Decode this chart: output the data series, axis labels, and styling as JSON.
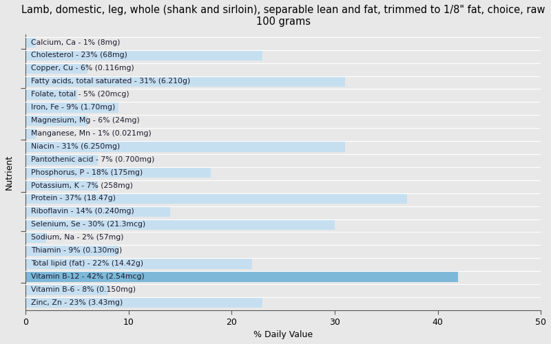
{
  "title": "Lamb, domestic, leg, whole (shank and sirloin), separable lean and fat, trimmed to 1/8\" fat, choice, raw\n100 grams",
  "xlabel": "% Daily Value",
  "ylabel": "Nutrient",
  "nutrients": [
    "Calcium, Ca - 1% (8mg)",
    "Cholesterol - 23% (68mg)",
    "Copper, Cu - 6% (0.116mg)",
    "Fatty acids, total saturated - 31% (6.210g)",
    "Folate, total - 5% (20mcg)",
    "Iron, Fe - 9% (1.70mg)",
    "Magnesium, Mg - 6% (24mg)",
    "Manganese, Mn - 1% (0.021mg)",
    "Niacin - 31% (6.250mg)",
    "Pantothenic acid - 7% (0.700mg)",
    "Phosphorus, P - 18% (175mg)",
    "Potassium, K - 7% (258mg)",
    "Protein - 37% (18.47g)",
    "Riboflavin - 14% (0.240mg)",
    "Selenium, Se - 30% (21.3mcg)",
    "Sodium, Na - 2% (57mg)",
    "Thiamin - 9% (0.130mg)",
    "Total lipid (fat) - 22% (14.42g)",
    "Vitamin B-12 - 42% (2.54mcg)",
    "Vitamin B-6 - 8% (0.150mg)",
    "Zinc, Zn - 23% (3.43mg)"
  ],
  "values": [
    1,
    23,
    6,
    31,
    5,
    9,
    6,
    1,
    31,
    7,
    18,
    7,
    37,
    14,
    30,
    2,
    9,
    22,
    42,
    8,
    23
  ],
  "bar_color": "#c5dff0",
  "highlight_color": "#7db8d8",
  "highlight_index": 18,
  "background_color": "#e8e8e8",
  "plot_background_color": "#e8e8e8",
  "xlim": [
    0,
    50
  ],
  "title_fontsize": 10.5,
  "label_fontsize": 7.8,
  "axis_label_fontsize": 9,
  "bar_height": 0.82,
  "tick_group_boundaries_from_top": [
    1,
    4,
    8,
    12,
    15,
    19
  ]
}
